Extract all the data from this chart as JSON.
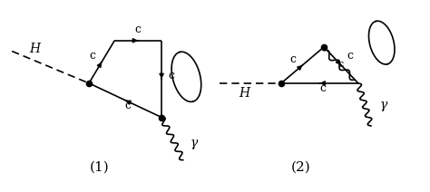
{
  "bg_color": "#ffffff",
  "fig_width": 4.74,
  "fig_height": 2.12,
  "dpi": 100,
  "label1": "(1)",
  "label2": "(2)",
  "H_label": "H",
  "c_label": "c",
  "gamma_label": "γ"
}
